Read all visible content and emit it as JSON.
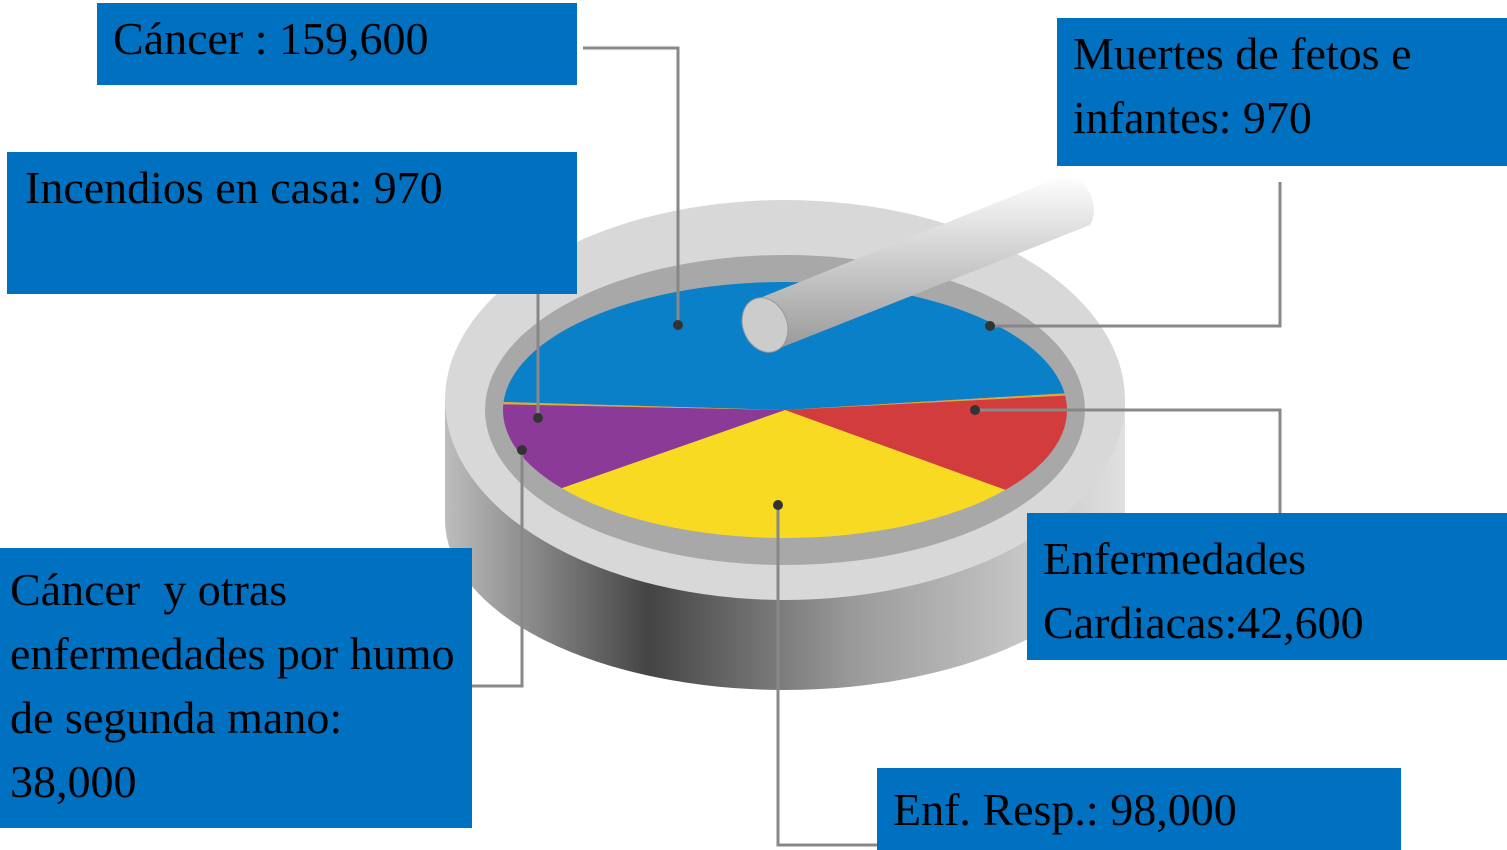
{
  "chart_data": {
    "type": "pie",
    "labels": [
      "Cáncer : 159,600",
      "Muertes de fetos e infantes: 970",
      "Enfermedades Cardiacas:42,600",
      "Enf. Resp.: 98,000",
      "Cáncer  y otras enfermedades por humo de segunda mano: 38,000",
      "Incendios en casa: 970"
    ],
    "values": [
      159600,
      970,
      42600,
      98000,
      38000,
      970
    ],
    "colors": [
      "#0a80c8",
      "#e0a838",
      "#d23c3c",
      "#f8da22",
      "#8c3a98",
      "#e0a838"
    ]
  }
}
